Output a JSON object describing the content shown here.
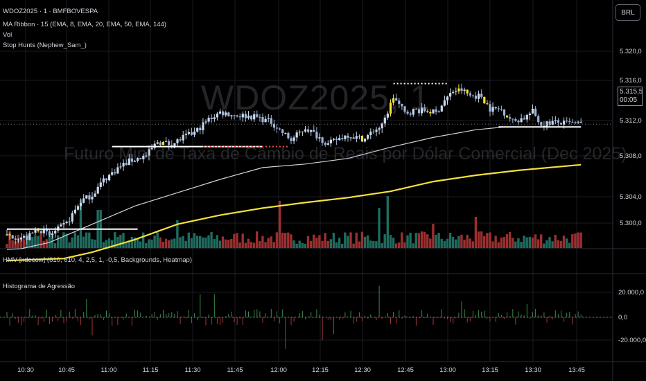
{
  "header": {
    "symbol_line": "WDOZ2025 · 1 · BMFBOVESPA",
    "indicators": [
      "MA Ribbon · 15 (EMA, 8, EMA, 20, EMA, 50, EMA, 144)",
      "Vol",
      "Stop Hunts (Nephew_Sam_)"
    ]
  },
  "watermark": {
    "symbol": "WDOZ2025, 1",
    "description": "Futuro Mini de Taxa de Câmbio de Reais por Dólar Comercial (Dec 2025)"
  },
  "currency_button": "BRL",
  "last_price": {
    "value": "5.315,5",
    "countdown": "00:05"
  },
  "lower_pane": {
    "title": "HMV [xdecow] (610, 610, 4, 2,5, 1, -0,5, Backgrounds, Heatmap)",
    "sub_title": "Histograma de Agressão"
  },
  "colors": {
    "up": "#26a69a",
    "down": "#ef5350",
    "candle_up": "#c9d9ec",
    "candle_down": "#9cb4d8",
    "yellow": "#f5e13a",
    "ema_white": "#d1d4dc",
    "vol_up": "#1f6b5e",
    "vol_down": "#9b2f2f",
    "hist_up": "#3d8a47",
    "hist_down": "#a33838",
    "grid": "#1b1d22",
    "axis_text": "#d1d4dc"
  },
  "chart_data": {
    "type": "candlestick",
    "x_ticks": [
      "10:30",
      "10:45",
      "11:00",
      "11:15",
      "11:30",
      "11:45",
      "12:00",
      "12:15",
      "12:30",
      "12:45",
      "13:00",
      "13:15",
      "13:30",
      "13:45"
    ],
    "price_ticks": [
      "5.320,0",
      "5.316,0",
      "5.312,0",
      "5.308,0",
      "5.304,0",
      "5.300,0"
    ],
    "price_range": [
      5298.0,
      5322.3
    ],
    "last_price": 5315.5,
    "ema_series": [
      {
        "name": "EMA 50",
        "color": "white",
        "points": [
          [
            0,
            5297.6
          ],
          [
            10,
            5297.7
          ],
          [
            30,
            5298.6
          ],
          [
            60,
            5301.2
          ],
          [
            90,
            5303.8
          ],
          [
            120,
            5305.7
          ],
          [
            150,
            5307.6
          ],
          [
            180,
            5309.3
          ],
          [
            210,
            5309.8
          ],
          [
            240,
            5310.6
          ],
          [
            270,
            5312.2
          ],
          [
            300,
            5313.6
          ],
          [
            330,
            5314.7
          ],
          [
            350,
            5315.1
          ],
          [
            370,
            5315.1
          ],
          [
            404,
            5315.1
          ]
        ]
      },
      {
        "name": "EMA 144",
        "color": "yellow",
        "points": [
          [
            0,
            5296.0
          ],
          [
            40,
            5296.3
          ],
          [
            60,
            5297.2
          ],
          [
            90,
            5299.0
          ],
          [
            120,
            5301.2
          ],
          [
            150,
            5302.5
          ],
          [
            180,
            5303.5
          ],
          [
            210,
            5304.3
          ],
          [
            240,
            5305.0
          ],
          [
            270,
            5305.9
          ],
          [
            300,
            5307.3
          ],
          [
            330,
            5308.2
          ],
          [
            360,
            5308.9
          ],
          [
            404,
            5309.7
          ]
        ]
      }
    ],
    "price_path": [
      [
        0,
        5299.6
      ],
      [
        14,
        5299.2
      ],
      [
        22,
        5300.6
      ],
      [
        30,
        5299.6
      ],
      [
        42,
        5301.3
      ],
      [
        52,
        5304.5
      ],
      [
        60,
        5305.4
      ],
      [
        68,
        5307.5
      ],
      [
        78,
        5309.2
      ],
      [
        86,
        5310.2
      ],
      [
        98,
        5311.0
      ],
      [
        106,
        5313.0
      ],
      [
        116,
        5312.6
      ],
      [
        124,
        5313.6
      ],
      [
        132,
        5314.3
      ],
      [
        142,
        5316.2
      ],
      [
        150,
        5317.2
      ],
      [
        160,
        5316.8
      ],
      [
        168,
        5316.7
      ],
      [
        176,
        5316.5
      ],
      [
        186,
        5315.8
      ],
      [
        194,
        5314.3
      ],
      [
        200,
        5313.2
      ],
      [
        210,
        5315.0
      ],
      [
        220,
        5313.6
      ],
      [
        226,
        5312.6
      ],
      [
        232,
        5313.3
      ],
      [
        240,
        5314.0
      ],
      [
        246,
        5313.6
      ],
      [
        252,
        5313.4
      ],
      [
        258,
        5314.6
      ],
      [
        264,
        5315.2
      ],
      [
        272,
        5319.4
      ],
      [
        280,
        5317.1
      ],
      [
        288,
        5317.5
      ],
      [
        296,
        5317.4
      ],
      [
        302,
        5317.1
      ],
      [
        308,
        5318.9
      ],
      [
        314,
        5320.2
      ],
      [
        320,
        5320.4
      ],
      [
        326,
        5319.6
      ],
      [
        334,
        5319.5
      ],
      [
        340,
        5317.7
      ],
      [
        348,
        5317.6
      ],
      [
        356,
        5315.9
      ],
      [
        364,
        5316.4
      ],
      [
        370,
        5317.3
      ],
      [
        376,
        5315.4
      ],
      [
        384,
        5315.8
      ],
      [
        392,
        5315.6
      ],
      [
        398,
        5315.6
      ],
      [
        404,
        5315.5
      ]
    ],
    "stop_hunt_levels": [
      {
        "price": 5300.5,
        "from": 0,
        "to": 92,
        "style": "solid"
      },
      {
        "price": 5312.3,
        "from": 74,
        "to": 180,
        "style": "solid"
      },
      {
        "price": 5312.3,
        "from": 138,
        "to": 198,
        "style": "dotted"
      },
      {
        "price": 5321.3,
        "from": 272,
        "to": 310,
        "style": "dotted"
      },
      {
        "price": 5315.1,
        "from": 346,
        "to": 404,
        "style": "solid"
      }
    ],
    "volume_profile": "spikes near 11:05, 12:00, 12:35, 13:05",
    "histogram_ticks": [
      "20.000,0",
      "0,0",
      "-20.000,0"
    ],
    "histogram_range": [
      -27000,
      27000
    ]
  }
}
